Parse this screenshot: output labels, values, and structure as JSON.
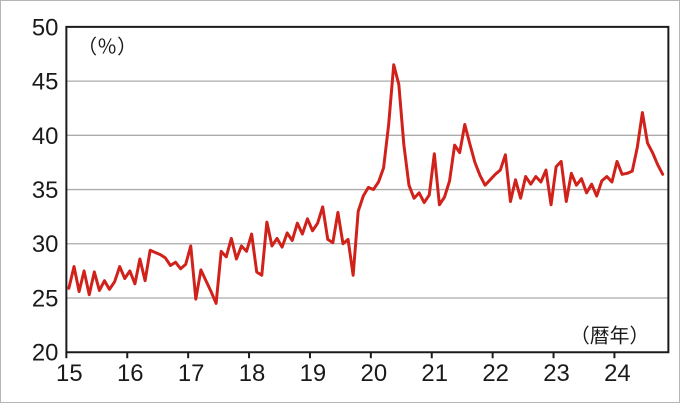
{
  "chart_data": {
    "type": "line",
    "title": "",
    "unit_label": "（％）",
    "x_axis_label": "（暦年）",
    "x_tick_labels": [
      "15",
      "16",
      "17",
      "18",
      "19",
      "20",
      "21",
      "22",
      "23",
      "24"
    ],
    "y_ticks": [
      20,
      25,
      30,
      35,
      40,
      45,
      50
    ],
    "ylim": [
      20,
      50
    ],
    "xlim_years": [
      2015.0,
      2024.9
    ],
    "grid": "horizontal",
    "legend": "none",
    "frequency": "monthly",
    "start": "2015-01",
    "end": "2024-10",
    "series": [
      {
        "name": "ratio-percent",
        "color": "#d0211a",
        "values": [
          25.9,
          27.9,
          25.6,
          27.5,
          25.3,
          27.4,
          25.7,
          26.6,
          25.8,
          26.5,
          27.9,
          26.8,
          27.5,
          26.3,
          28.6,
          26.6,
          29.4,
          29.2,
          29.0,
          28.7,
          28.0,
          28.3,
          27.7,
          28.1,
          29.8,
          24.9,
          27.6,
          26.6,
          25.6,
          24.5,
          29.3,
          28.8,
          30.5,
          28.6,
          29.8,
          29.3,
          30.9,
          27.4,
          27.1,
          32.0,
          29.8,
          30.5,
          29.7,
          31.0,
          30.3,
          31.9,
          30.9,
          32.3,
          31.2,
          31.9,
          33.4,
          30.4,
          30.1,
          32.9,
          30.0,
          30.4,
          27.1,
          33.0,
          34.4,
          35.2,
          35.0,
          35.7,
          37.0,
          41.0,
          46.5,
          44.7,
          39.1,
          35.4,
          34.2,
          34.7,
          33.8,
          34.5,
          38.3,
          33.6,
          34.3,
          35.8,
          39.1,
          38.4,
          41.0,
          39.2,
          37.5,
          36.3,
          35.4,
          35.9,
          36.4,
          36.8,
          38.2,
          33.9,
          35.9,
          34.2,
          36.2,
          35.5,
          36.2,
          35.7,
          36.8,
          33.6,
          37.1,
          37.6,
          33.9,
          36.5,
          35.4,
          36.0,
          34.7,
          35.5,
          34.4,
          35.8,
          36.2,
          35.7,
          37.6,
          36.4,
          36.5,
          36.7,
          38.9,
          42.1,
          39.3,
          38.4,
          37.3,
          36.4
        ]
      }
    ]
  },
  "styles": {
    "line_color": "#d0211a",
    "grid_color": "#ababab",
    "frame_color": "#1a1a1a",
    "text_color": "#1a1a1a",
    "background": "#ffffff",
    "outer_border": "#b5b5b5"
  }
}
